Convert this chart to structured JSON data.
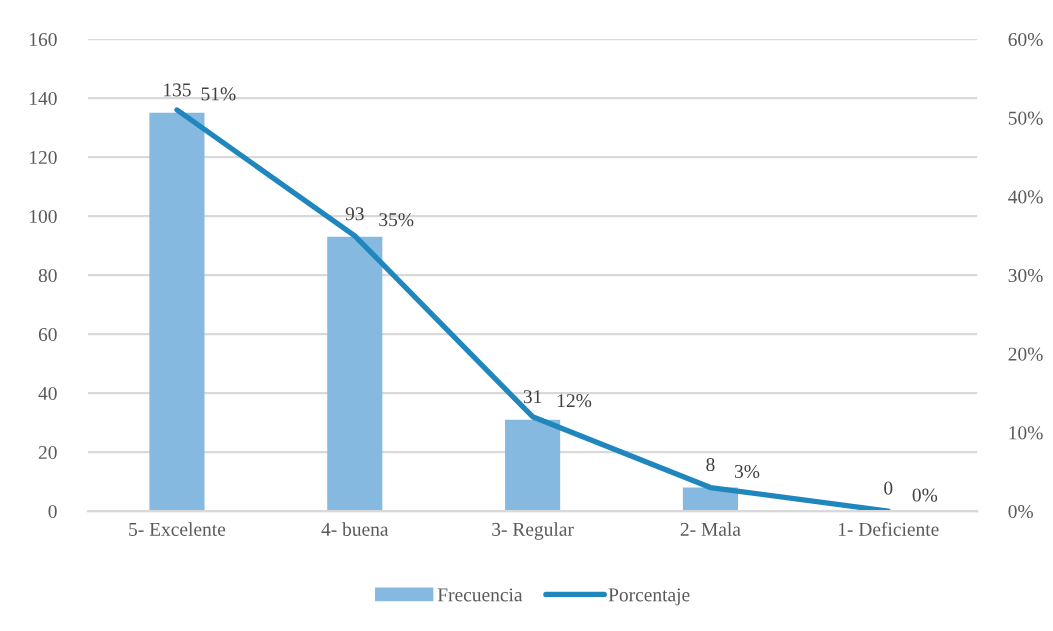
{
  "chart_data": {
    "type": "bar",
    "categories": [
      "5- Excelente",
      "4- buena",
      "3- Regular",
      "2- Mala",
      "1- Deficiente"
    ],
    "series": [
      {
        "name": "Frecuencia",
        "color": "#86b9e0",
        "values": [
          135,
          93,
          31,
          8,
          0
        ],
        "value_labels": [
          "135",
          "93",
          "31",
          "8",
          "0"
        ]
      },
      {
        "name": "Porcentaje",
        "type": "line",
        "axis": "y2",
        "color": "#1f87be",
        "values": [
          51,
          35,
          12,
          3,
          0
        ],
        "value_labels": [
          "51%",
          "35%",
          "12%",
          "3%",
          "0%"
        ]
      }
    ],
    "ylim": [
      0,
      160
    ],
    "yticks": [
      0,
      20,
      40,
      60,
      80,
      100,
      120,
      140,
      160
    ],
    "y2lim": [
      0,
      60
    ],
    "y2ticks": [
      {
        "value": 0,
        "label": "0%"
      },
      {
        "value": 10,
        "label": "10%"
      },
      {
        "value": 20,
        "label": "20%"
      },
      {
        "value": 30,
        "label": "30%"
      },
      {
        "value": 40,
        "label": "40%"
      },
      {
        "value": 50,
        "label": "50%"
      },
      {
        "value": 60,
        "label": "60%"
      }
    ],
    "grid": "y",
    "legend": "bottom",
    "line_style": "solid",
    "marker": "none"
  }
}
